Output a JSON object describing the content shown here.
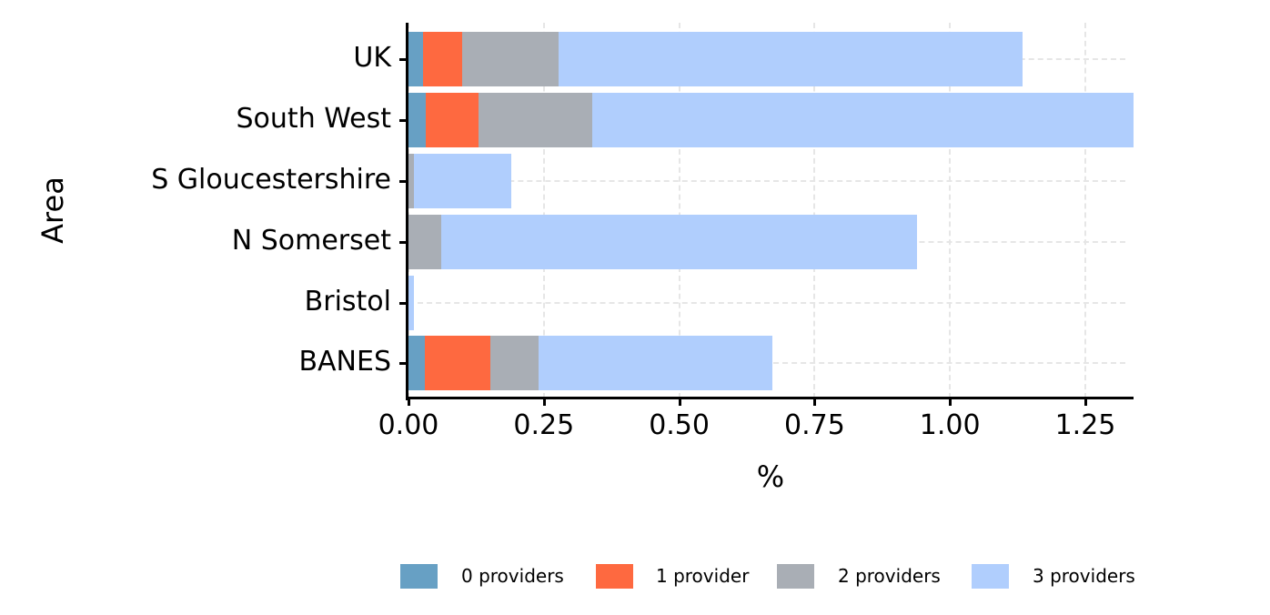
{
  "chart_data": {
    "type": "bar",
    "orientation": "horizontal",
    "stacked": true,
    "title": "",
    "xlabel": "%",
    "ylabel": "Area",
    "xlim": [
      0,
      1.34
    ],
    "x_ticks": [
      "0.00",
      "0.25",
      "0.50",
      "0.75",
      "1.00",
      "1.25"
    ],
    "x_tick_values": [
      0,
      0.25,
      0.5,
      0.75,
      1.0,
      1.25
    ],
    "categories": [
      "UK",
      "South West",
      "S Gloucestershire",
      "N Somerset",
      "Bristol",
      "BANES"
    ],
    "series": [
      {
        "name": "0 providers",
        "color": "#67a0c4",
        "values": [
          0.027,
          0.032,
          0.0,
          0.0,
          0.0,
          0.03
        ]
      },
      {
        "name": "1 provider",
        "color": "#fe6940",
        "values": [
          0.072,
          0.097,
          0.0,
          0.0,
          0.0,
          0.121
        ]
      },
      {
        "name": "2 providers",
        "color": "#a9aeb5",
        "values": [
          0.178,
          0.21,
          0.01,
          0.06,
          0.0,
          0.089
        ]
      },
      {
        "name": "3 providers",
        "color": "#b0cefd",
        "values": [
          0.857,
          1.0,
          0.18,
          0.88,
          0.01,
          0.432
        ]
      }
    ],
    "grid": "dashed, major x and y",
    "legend_position": "bottom"
  },
  "axes": {
    "ytitle": "Area",
    "xtitle": "%"
  },
  "legend": [
    {
      "label": "0 providers",
      "color": "#67a0c4"
    },
    {
      "label": "1 provider",
      "color": "#fe6940"
    },
    {
      "label": "2 providers",
      "color": "#a9aeb5"
    },
    {
      "label": "3 providers",
      "color": "#b0cefd"
    }
  ]
}
